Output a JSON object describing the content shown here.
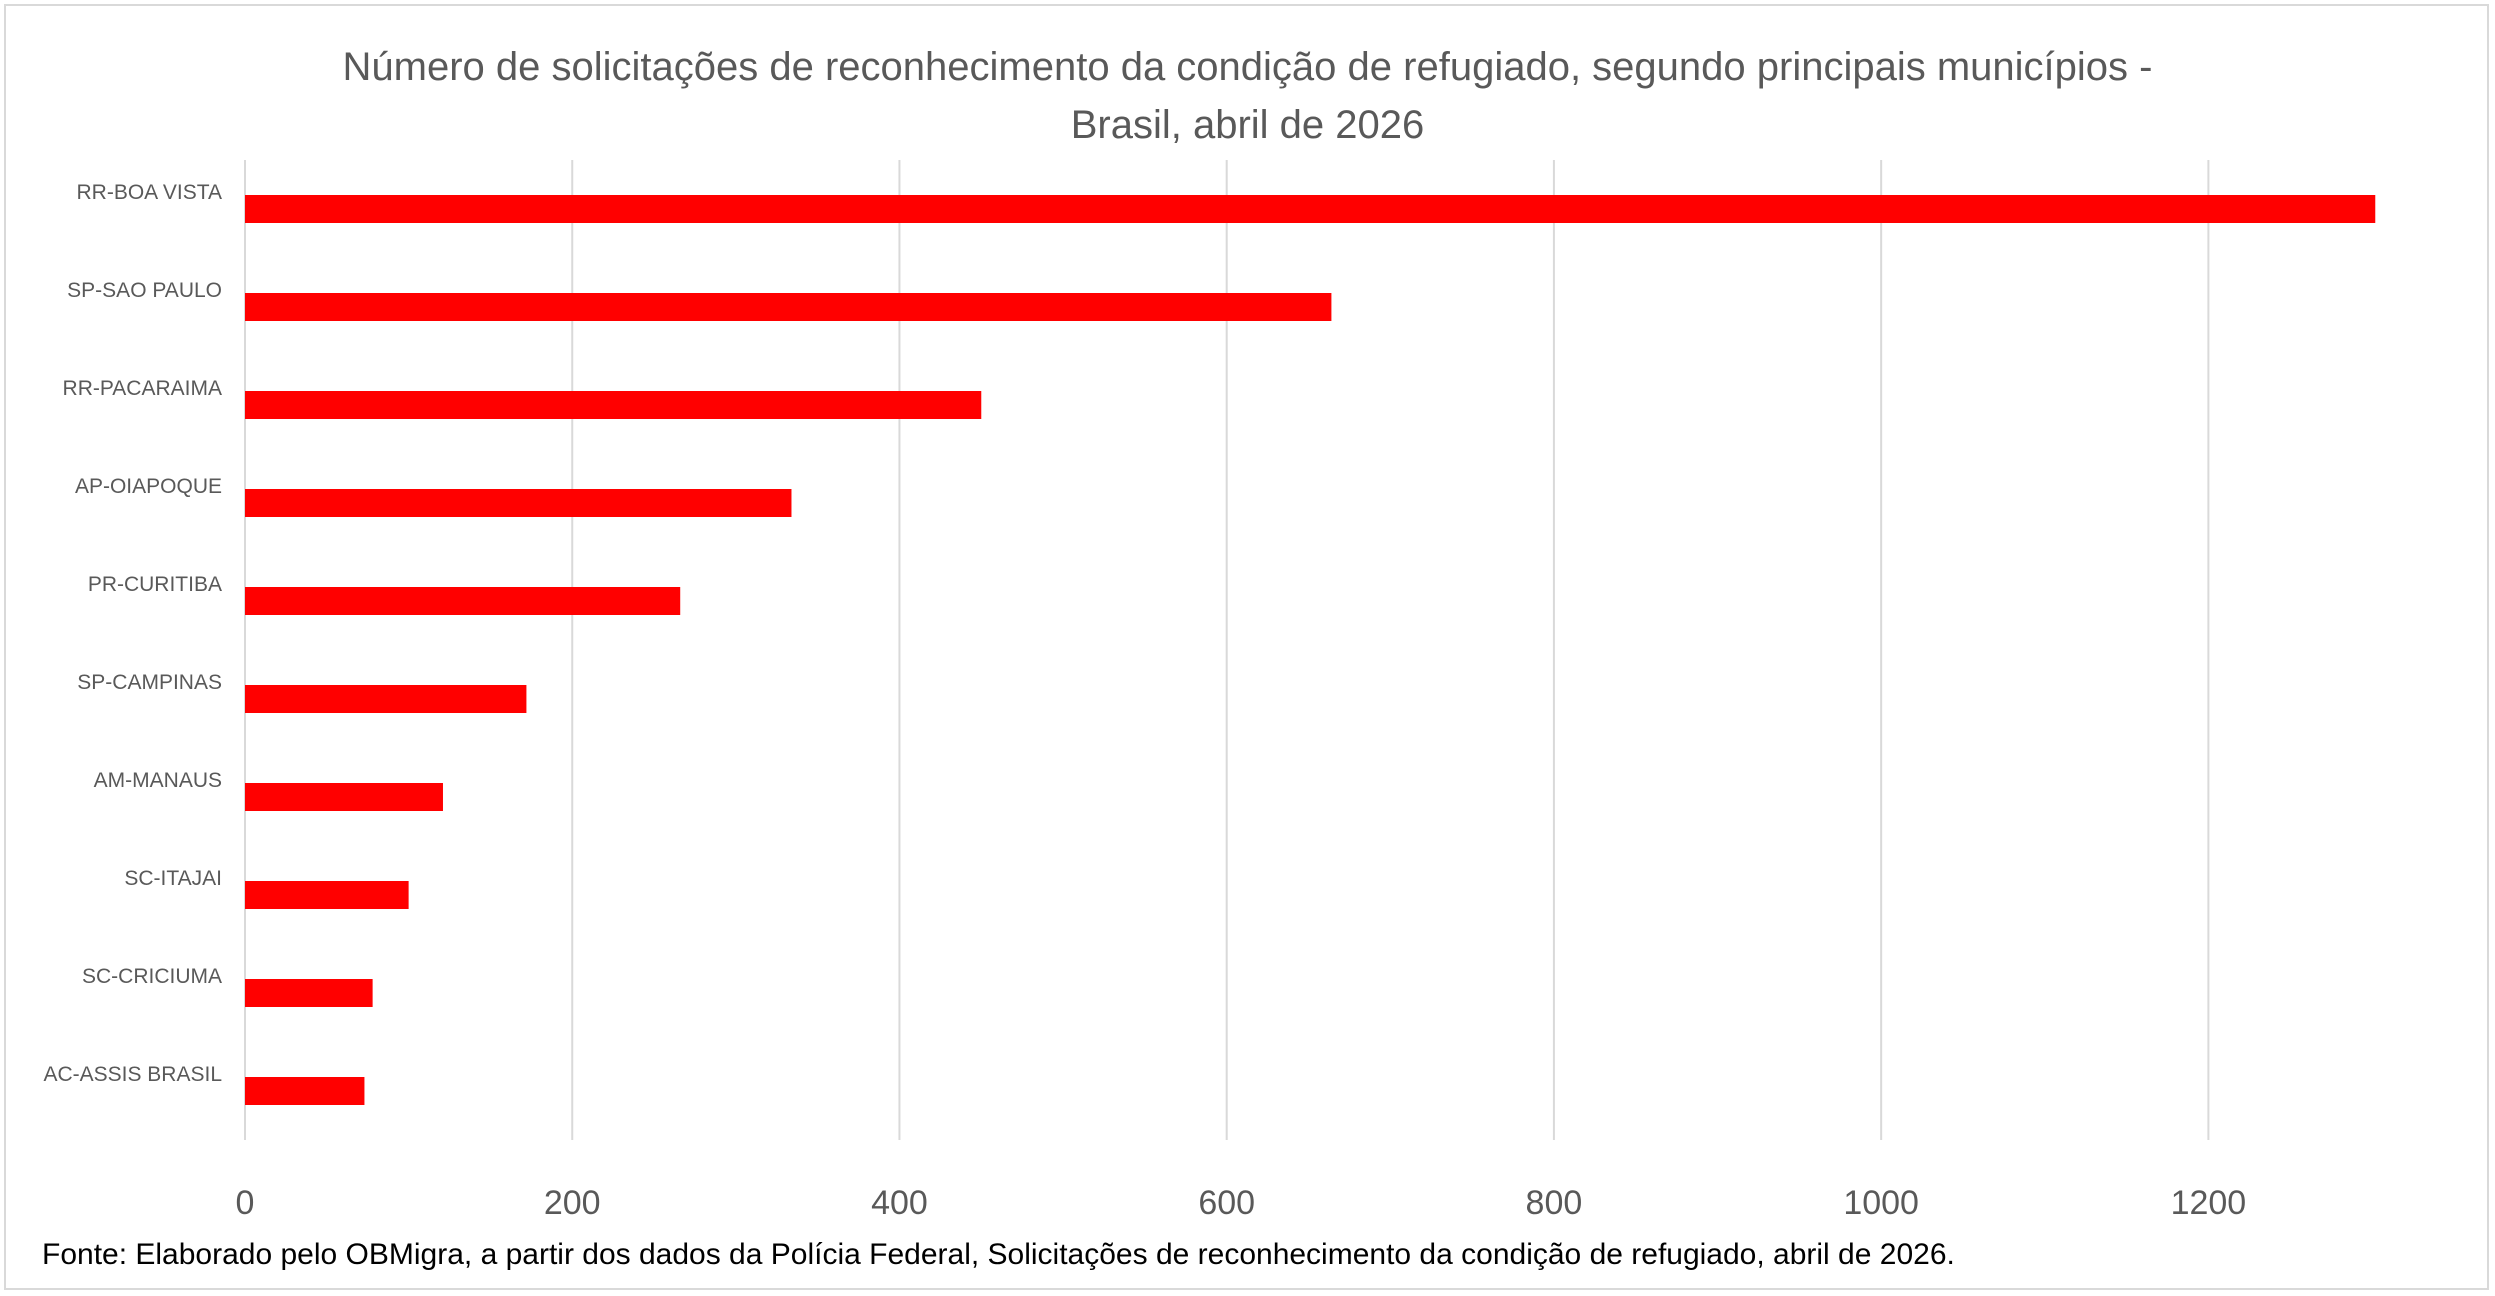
{
  "chart_data": {
    "type": "bar",
    "orientation": "horizontal",
    "title_line1": "Número de solicitações de reconhecimento da condição de refugiado, segundo principais municípios -",
    "title_line2": "Brasil, abril de 2026",
    "categories": [
      "RR-BOA VISTA",
      "SP-SAO PAULO",
      "RR-PACARAIMA",
      "AP-OIAPOQUE",
      "PR-CURITIBA",
      "SP-CAMPINAS",
      "AM-MANAUS",
      "SC-ITAJAI",
      "SC-CRICIUMA",
      "AC-ASSIS BRASIL"
    ],
    "values": [
      1302,
      664,
      450,
      334,
      266,
      172,
      121,
      100,
      78,
      73
    ],
    "xlim": [
      0,
      1300
    ],
    "xticks": [
      "0",
      "200",
      "400",
      "600",
      "800",
      "1000",
      "1200"
    ],
    "xtick_values": [
      0,
      200,
      400,
      600,
      800,
      1000,
      1200
    ],
    "grid": true,
    "bar_color": "#ff0000",
    "gridline_color": "#d9d9d9",
    "source": "Fonte: Elaborado pelo OBMigra, a partir dos dados da Polícia Federal, Solicitações de reconhecimento da condição de refugiado, abril de 2026."
  }
}
